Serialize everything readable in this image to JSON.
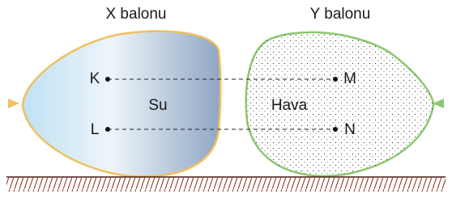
{
  "labels": {
    "x_balloon": "X balonu",
    "y_balloon": "Y balonu"
  },
  "points": {
    "k": "K",
    "l": "L",
    "m": "M",
    "n": "N"
  },
  "contents": {
    "x": "Su",
    "y": "Hava"
  }
}
